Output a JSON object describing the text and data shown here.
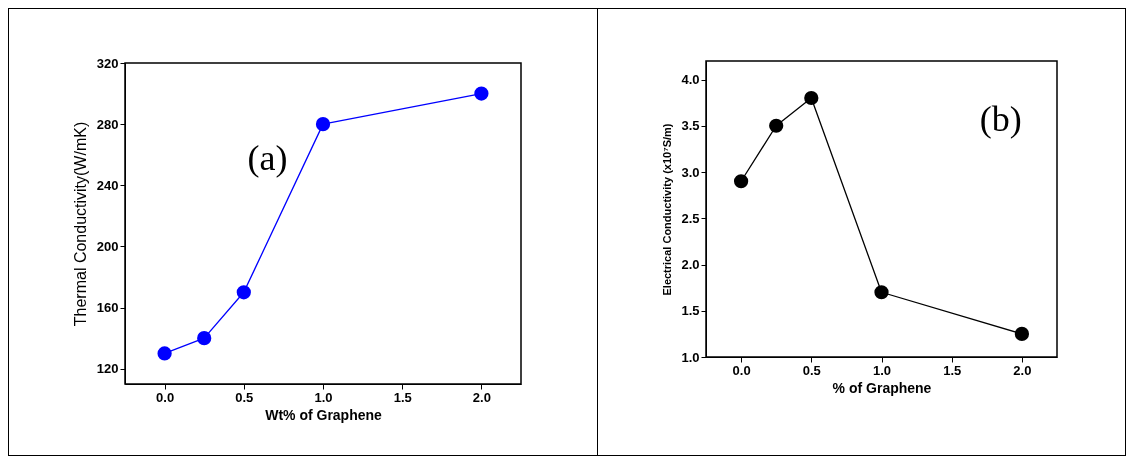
{
  "chart_data": [
    {
      "type": "line",
      "xlabel": "Wt% of Graphene",
      "ylabel": "Thermal Conductivity(W/mK)",
      "x": [
        0,
        0.25,
        0.5,
        1.0,
        2.0
      ],
      "series": [
        {
          "color": "#0000ff",
          "values": [
            130,
            140,
            170,
            280,
            300
          ]
        }
      ],
      "xlim": [
        -0.25,
        2.25
      ],
      "xticks": [
        {
          "value": 0,
          "label": "0.0"
        },
        {
          "value": 0.5,
          "label": "0.5"
        },
        {
          "value": 1,
          "label": "1.0"
        },
        {
          "value": 1.5,
          "label": "1.5"
        },
        {
          "value": 2,
          "label": "2.0"
        }
      ],
      "ylim": [
        110,
        320
      ],
      "yticks": [
        120,
        160,
        200,
        240,
        280,
        320
      ],
      "grid": false,
      "marker": "circle",
      "annotations": [
        "(a)"
      ]
    },
    {
      "type": "line",
      "xlabel": "% of Graphene",
      "ylabel": "Electrical Conductivity (x10⁷S/m)",
      "x": [
        0,
        0.25,
        0.5,
        1.0,
        2.0
      ],
      "series": [
        {
          "color": "#000000",
          "values": [
            2.9,
            3.5,
            3.8,
            1.7,
            1.25
          ]
        }
      ],
      "xlim": [
        -0.25,
        2.25
      ],
      "xticks": [
        {
          "value": 0,
          "label": "0.0"
        },
        {
          "value": 0.5,
          "label": "0.5"
        },
        {
          "value": 1,
          "label": "1.0"
        },
        {
          "value": 1.5,
          "label": "1.5"
        },
        {
          "value": 2,
          "label": "2.0"
        }
      ],
      "ylim": [
        1.0,
        4.2
      ],
      "yticks": [
        {
          "value": 1,
          "label": "1.0"
        },
        {
          "value": 1.5,
          "label": "1.5"
        },
        {
          "value": 2,
          "label": "2.0"
        },
        {
          "value": 2.5,
          "label": "2.5"
        },
        {
          "value": 3,
          "label": "3.0"
        },
        {
          "value": 3.5,
          "label": "3.5"
        },
        {
          "value": 4,
          "label": "4.0"
        }
      ],
      "grid": false,
      "marker": "circle",
      "annotations": [
        "(b)"
      ]
    }
  ]
}
